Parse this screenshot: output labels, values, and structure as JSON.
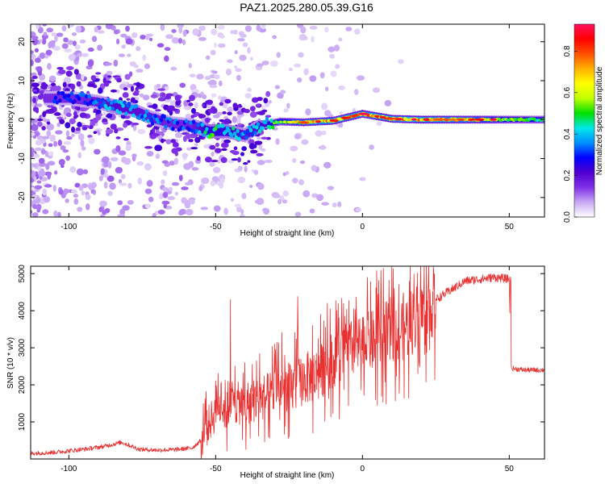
{
  "title": "PAZ1.2025.280.05.39.G16",
  "chart_data": [
    {
      "type": "heatmap",
      "title": "PAZ1.2025.280.05.39.G16",
      "xlabel": "Height of straight line (km)",
      "ylabel": "Frequency (Hz)",
      "xlim": [
        -113,
        62
      ],
      "ylim": [
        -25,
        24.5
      ],
      "xticks": [
        -100,
        -50,
        0,
        50
      ],
      "yticks": [
        -20,
        -10,
        0,
        10,
        20
      ],
      "xtick_labels": [
        "-100",
        "-50",
        "0",
        "50"
      ],
      "ytick_labels": [
        "-20",
        "-10",
        "0",
        "10",
        "20"
      ],
      "ridge": [
        {
          "x": -100,
          "y": 5.5,
          "amp": 0.28
        },
        {
          "x": -90,
          "y": 4.5,
          "amp": 0.32
        },
        {
          "x": -85,
          "y": 3.5,
          "amp": 0.38
        },
        {
          "x": -78,
          "y": 2.5,
          "amp": 0.36
        },
        {
          "x": -72,
          "y": 0.5,
          "amp": 0.33
        },
        {
          "x": -65,
          "y": -1.0,
          "amp": 0.3
        },
        {
          "x": -58,
          "y": -1.5,
          "amp": 0.3
        },
        {
          "x": -52,
          "y": -3.0,
          "amp": 0.45
        },
        {
          "x": -46,
          "y": -3.0,
          "amp": 0.42
        },
        {
          "x": -40,
          "y": -4.0,
          "amp": 0.35
        },
        {
          "x": -35,
          "y": -1.5,
          "amp": 0.38
        },
        {
          "x": -28,
          "y": -0.5,
          "amp": 0.5
        },
        {
          "x": -20,
          "y": -0.7,
          "amp": 0.62
        },
        {
          "x": -10,
          "y": -0.3,
          "amp": 0.7
        },
        {
          "x": 0,
          "y": 1.5,
          "amp": 0.68
        },
        {
          "x": 10,
          "y": 0.2,
          "amp": 0.72
        },
        {
          "x": 20,
          "y": 0.0,
          "amp": 0.7
        },
        {
          "x": 30,
          "y": 0.0,
          "amp": 0.66
        },
        {
          "x": 40,
          "y": 0.0,
          "amp": 0.6
        },
        {
          "x": 50,
          "y": 0.0,
          "amp": 0.5
        },
        {
          "x": 62,
          "y": 0.0,
          "amp": 0.45
        }
      ],
      "colorbar": {
        "label": "Normalized spectral amplitude",
        "range": [
          0,
          0.93
        ],
        "ticks": [
          0.0,
          0.2,
          0.4,
          0.6,
          0.8
        ],
        "tick_labels": [
          "0.0",
          "0.2",
          "0.4",
          "0.6",
          "0.8"
        ],
        "colors": [
          "#ffffff",
          "#c8a8f4",
          "#8030e8",
          "#5000d0",
          "#0000ff",
          "#0090ff",
          "#00e8e8",
          "#00e000",
          "#c0ff00",
          "#ffff00",
          "#ffb000",
          "#ff5000",
          "#ff0000",
          "#ff1060"
        ]
      }
    },
    {
      "type": "line",
      "xlabel": "Height of straight line (km)",
      "ylabel": "SNR (10 * v/v)",
      "xlim": [
        -113,
        62
      ],
      "ylim": [
        0,
        5200
      ],
      "xticks": [
        -100,
        -50,
        0,
        50
      ],
      "yticks": [
        1000,
        2000,
        3000,
        4000,
        5000
      ],
      "xtick_labels": [
        "-100",
        "-50",
        "0",
        "50"
      ],
      "ytick_labels": [
        "1000",
        "2000",
        "3000",
        "4000",
        "5000"
      ],
      "color": "#e83030",
      "series": [
        {
          "name": "SNR",
          "x": [
            -113,
            -105,
            -95,
            -88,
            -82,
            -76,
            -70,
            -64,
            -58,
            -55,
            -52,
            -49,
            -46,
            -43,
            -40,
            -36,
            -32,
            -28,
            -24,
            -20,
            -15,
            -10,
            -5,
            0,
            5,
            10,
            15,
            20,
            25,
            30,
            35,
            40,
            45,
            50,
            50.5,
            55,
            62
          ],
          "y": [
            150,
            180,
            260,
            340,
            450,
            260,
            240,
            250,
            300,
            500,
            1000,
            1400,
            1300,
            1500,
            1500,
            1600,
            1700,
            2000,
            1900,
            2150,
            2300,
            2700,
            2900,
            3100,
            3200,
            3500,
            3600,
            3900,
            4300,
            4550,
            4800,
            4850,
            4900,
            4850,
            2450,
            2400,
            2400
          ]
        }
      ],
      "spikes": [
        {
          "x": -45,
          "y": 4300
        },
        {
          "x": -40,
          "y": 2600
        },
        {
          "x": -30,
          "y": 3100
        },
        {
          "x": -22,
          "y": 4380
        },
        {
          "x": -17,
          "y": 3600
        },
        {
          "x": -11,
          "y": 4050
        },
        {
          "x": -3,
          "y": 4050
        },
        {
          "x": 5,
          "y": 5000
        },
        {
          "x": 5,
          "y": 4200
        },
        {
          "x": 4.5,
          "y": 1600
        }
      ]
    }
  ]
}
